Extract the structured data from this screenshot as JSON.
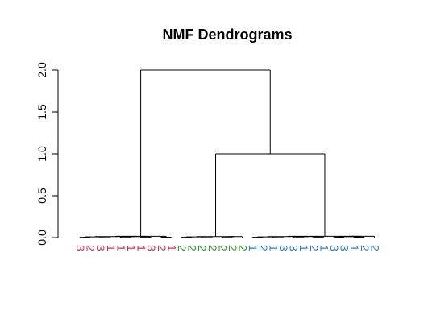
{
  "chart_data": {
    "type": "dendrogram",
    "title": "NMF Dendrograms",
    "xlabel": "",
    "ylabel": "",
    "ylim": [
      0,
      2.0
    ],
    "yticks": [
      0.0,
      0.5,
      1.0,
      1.5,
      2.0
    ],
    "ytick_labels": [
      "0.0",
      "0.5",
      "1.0",
      "1.5",
      "2.0"
    ],
    "grid": false,
    "leaves": [
      {
        "label": "3",
        "group": 1
      },
      {
        "label": "2",
        "group": 1
      },
      {
        "label": "3",
        "group": 1
      },
      {
        "label": "1",
        "group": 1
      },
      {
        "label": "1",
        "group": 1
      },
      {
        "label": "1",
        "group": 1
      },
      {
        "label": "1",
        "group": 1
      },
      {
        "label": "3",
        "group": 1
      },
      {
        "label": "2",
        "group": 1
      },
      {
        "label": "1",
        "group": 1
      },
      {
        "label": "2",
        "group": 2
      },
      {
        "label": "2",
        "group": 2
      },
      {
        "label": "2",
        "group": 2
      },
      {
        "label": "2",
        "group": 2
      },
      {
        "label": "2",
        "group": 2
      },
      {
        "label": "2",
        "group": 2
      },
      {
        "label": "2",
        "group": 2
      },
      {
        "label": "1",
        "group": 3
      },
      {
        "label": "2",
        "group": 3
      },
      {
        "label": "1",
        "group": 3
      },
      {
        "label": "3",
        "group": 3
      },
      {
        "label": "3",
        "group": 3
      },
      {
        "label": "1",
        "group": 3
      },
      {
        "label": "2",
        "group": 3
      },
      {
        "label": "1",
        "group": 3
      },
      {
        "label": "3",
        "group": 3
      },
      {
        "label": "3",
        "group": 3
      },
      {
        "label": "1",
        "group": 3
      },
      {
        "label": "2",
        "group": 3
      },
      {
        "label": "2",
        "group": 3
      }
    ],
    "group_colors": {
      "1": "#d0305a",
      "2": "#2e9a2e",
      "3": "#2d7fc4"
    },
    "merges": [
      {
        "left": [
          0,
          9
        ],
        "height": 0.02
      },
      {
        "left": [
          10,
          16
        ],
        "height": 0.02
      },
      {
        "left": [
          17,
          29
        ],
        "height": 0.02
      },
      {
        "cluster": [
          [
            10,
            16
          ],
          [
            17,
            29
          ]
        ],
        "height": 1.0
      },
      {
        "cluster": [
          [
            0,
            9
          ],
          [
            10,
            29
          ]
        ],
        "height": 2.0
      }
    ]
  }
}
